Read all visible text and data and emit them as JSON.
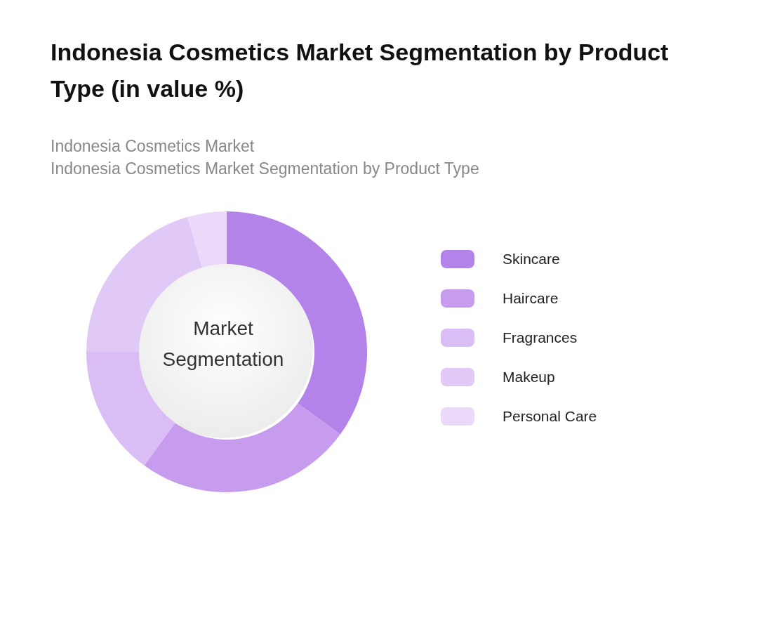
{
  "chart_data": {
    "type": "donut",
    "title": "Indonesia Cosmetics Market Segmentation by Product Type (in value %)",
    "subtitle": "Indonesia Cosmetics Market\nIndonesia Cosmetics Market Segmentation by Product Type",
    "categories": [
      "Skincare",
      "Haircare",
      "Fragrances",
      "Makeup",
      "Personal Care"
    ],
    "values": [
      35,
      25,
      15,
      20.5,
      4.5
    ],
    "colors": [
      "#b383ea",
      "#c79cef",
      "#d9bdf4",
      "#e0c9f6",
      "#ead9f9"
    ],
    "annotations": [
      "Market Segmentation"
    ],
    "legend": "right"
  }
}
